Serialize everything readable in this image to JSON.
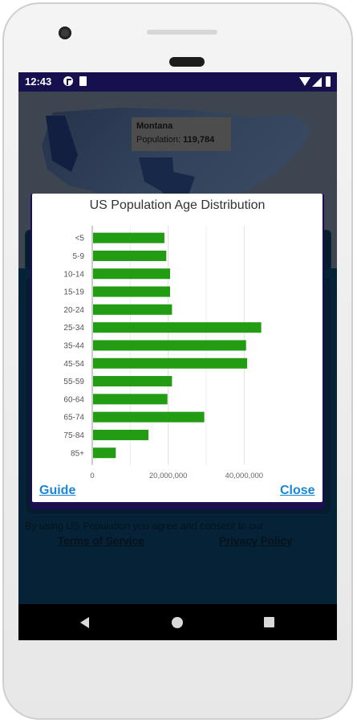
{
  "status_bar": {
    "time": "12:43"
  },
  "map": {
    "tooltip": {
      "state": "Montana",
      "label": "Population:",
      "value": "119,784"
    }
  },
  "dialog": {
    "title": "US Population Age Distribution",
    "guide_label": "Guide",
    "close_label": "Close"
  },
  "footer": {
    "consent_text": "By using US Population you agree and consent to our:",
    "terms_label": "Terms of Service",
    "privacy_label": "Privacy Policy"
  },
  "chart_data": {
    "type": "bar",
    "orientation": "horizontal",
    "categories": [
      "<5",
      "5-9",
      "10-14",
      "15-19",
      "20-24",
      "25-34",
      "35-44",
      "45-54",
      "55-59",
      "60-64",
      "65-74",
      "75-84",
      "85+"
    ],
    "values": [
      19000000,
      19500000,
      20500000,
      20500000,
      21000000,
      44500000,
      40500000,
      40800000,
      21000000,
      19800000,
      29500000,
      14800000,
      6200000
    ],
    "xlim": [
      0,
      45000000
    ],
    "x_ticks": [
      0,
      20000000,
      40000000
    ],
    "x_tick_labels": [
      "0",
      "20,000,000",
      "40,000,000"
    ],
    "grid": true,
    "bar_color": "#229c12"
  }
}
